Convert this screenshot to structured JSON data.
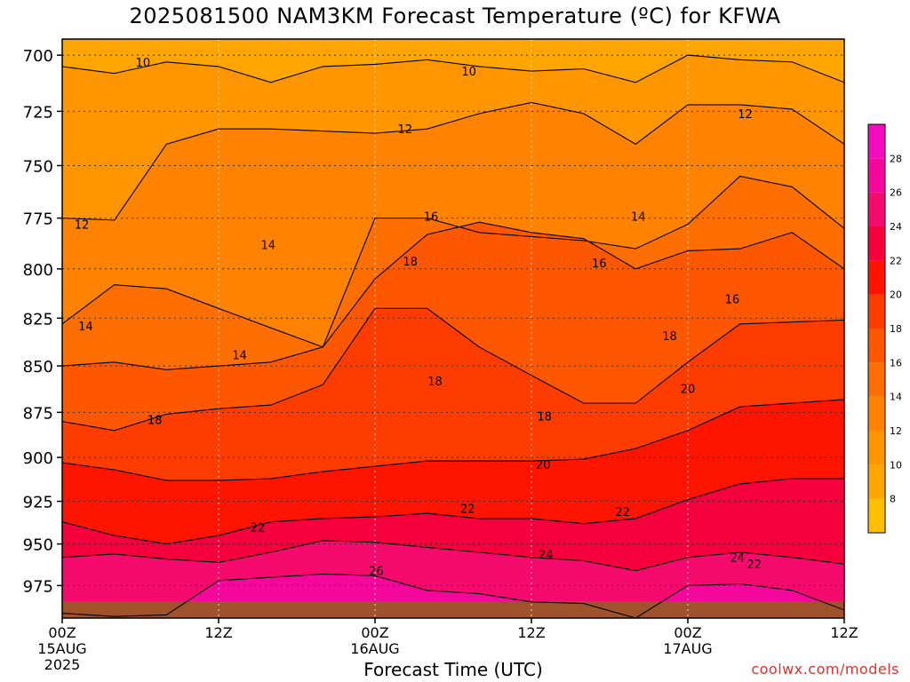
{
  "header": {
    "title": "2025081500 NAM3KM Forecast Temperature (ºC) for KFWA"
  },
  "footer": {
    "xlabel": "Forecast Time (UTC)",
    "credit": "coolwx.com/models"
  },
  "chart_data": {
    "type": "heatmap",
    "title": "2025081500 NAM3KM Forecast Temperature (ºC) for KFWA",
    "xlabel": "Forecast Time (UTC)",
    "ylabel": "",
    "y_scale": "pressure (inverted)",
    "x_range_hours": [
      0,
      60
    ],
    "y_range_hpa": [
      693,
      995
    ],
    "x_ticks": [
      {
        "hour": 0,
        "label": "00Z",
        "sub": [
          "15AUG",
          "2025"
        ]
      },
      {
        "hour": 12,
        "label": "12Z",
        "sub": []
      },
      {
        "hour": 24,
        "label": "00Z",
        "sub": [
          "16AUG"
        ]
      },
      {
        "hour": 36,
        "label": "12Z",
        "sub": []
      },
      {
        "hour": 48,
        "label": "00Z",
        "sub": [
          "17AUG"
        ]
      },
      {
        "hour": 60,
        "label": "12Z",
        "sub": []
      }
    ],
    "y_ticks": [
      700,
      725,
      750,
      775,
      800,
      825,
      850,
      875,
      900,
      925,
      950,
      975
    ],
    "grid": true,
    "colorbar": {
      "placement": "right",
      "levels": [
        6,
        8,
        10,
        12,
        14,
        16,
        18,
        20,
        22,
        24,
        26,
        28,
        30
      ],
      "labels": [
        8,
        10,
        12,
        14,
        16,
        18,
        20,
        22,
        24,
        26,
        28
      ],
      "colors": [
        "#ffbe00",
        "#ffa500",
        "#ff9600",
        "#ff8300",
        "#ff6e00",
        "#ff5600",
        "#ff3c00",
        "#ff1400",
        "#f5003c",
        "#f50a6e",
        "#f5079b",
        "#f50cc0"
      ]
    },
    "ground_color": "#a0522d",
    "contour_lines": [
      {
        "level": 10,
        "label": "10",
        "p": [
          705,
          708,
          703,
          705,
          712,
          705,
          704,
          702,
          705,
          707,
          706,
          712,
          700,
          702,
          703,
          712
        ]
      },
      {
        "level": 12,
        "label": "12",
        "p": [
          775,
          776,
          740,
          733,
          733,
          734,
          735,
          733,
          726,
          721,
          726,
          740,
          722,
          722,
          724,
          740
        ]
      },
      {
        "level": 14,
        "label": "14",
        "p": [
          828,
          808,
          810,
          820,
          830,
          840,
          775,
          775,
          782,
          784,
          786,
          790,
          778,
          755,
          760,
          780
        ]
      },
      {
        "level": 16,
        "label": "16",
        "p": [
          850,
          848,
          852,
          850,
          848,
          840,
          805,
          783,
          777,
          782,
          785,
          800,
          791,
          790,
          782,
          800
        ]
      },
      {
        "level": 18,
        "label": "18",
        "p": [
          880,
          885,
          876,
          873,
          871,
          860,
          820,
          820,
          840,
          855,
          870,
          870,
          848,
          828,
          827,
          826
        ]
      },
      {
        "level": 20,
        "label": "20",
        "p": [
          903,
          907,
          913,
          913,
          912,
          908,
          905,
          902,
          902,
          902,
          901,
          895,
          885,
          872,
          870,
          868
        ]
      },
      {
        "level": 22,
        "label": "22",
        "p": [
          937,
          945,
          950,
          945,
          937,
          935,
          934,
          932,
          935,
          935,
          938,
          935,
          924,
          915,
          912,
          912
        ]
      },
      {
        "level": 24,
        "label": "24",
        "p": [
          958,
          956,
          959,
          961,
          955,
          948,
          949,
          952,
          955,
          958,
          960,
          966,
          958,
          955,
          958,
          962
        ]
      },
      {
        "level": 26,
        "label": "26",
        "p": [
          992,
          994,
          993,
          972,
          970,
          968,
          969,
          978,
          980,
          985,
          986,
          996,
          975,
          974,
          978,
          990
        ]
      }
    ],
    "contour_label_positions": [
      {
        "label": "10",
        "hour": 6.2,
        "p": 703
      },
      {
        "label": "10",
        "hour": 31.2,
        "p": 707
      },
      {
        "label": "12",
        "hour": 1.5,
        "p": 778
      },
      {
        "label": "12",
        "hour": 26.3,
        "p": 733
      },
      {
        "label": "12",
        "hour": 52.4,
        "p": 726
      },
      {
        "level_note": "",
        "label": "14",
        "hour": 1.8,
        "p": 829
      },
      {
        "label": "14",
        "hour": 15.8,
        "p": 788
      },
      {
        "label": "14",
        "hour": 13.6,
        "p": 844
      },
      {
        "label": "14",
        "hour": 44.2,
        "p": 774
      },
      {
        "label": "16",
        "hour": 28.3,
        "p": 774
      },
      {
        "label": "16",
        "hour": 41.2,
        "p": 797
      },
      {
        "label": "16",
        "hour": 51.4,
        "p": 815
      },
      {
        "label": "18",
        "hour": 26.7,
        "p": 796
      },
      {
        "label": "18",
        "hour": 28.6,
        "p": 858
      },
      {
        "label": "18",
        "hour": 7.1,
        "p": 879
      },
      {
        "label": "18",
        "hour": 37.0,
        "p": 877
      },
      {
        "label": "18",
        "hour": 46.6,
        "p": 834
      },
      {
        "label": "20",
        "hour": 36.9,
        "p": 904
      },
      {
        "label": "20",
        "hour": 48.0,
        "p": 862
      },
      {
        "label": "22",
        "hour": 15.0,
        "p": 940
      },
      {
        "label": "22",
        "hour": 31.1,
        "p": 929
      },
      {
        "label": "22",
        "hour": 43.0,
        "p": 931
      },
      {
        "label": "22",
        "hour": 53.1,
        "p": 962
      },
      {
        "label": "24",
        "hour": 37.1,
        "p": 956
      },
      {
        "label": "24",
        "hour": 51.8,
        "p": 958
      },
      {
        "label": "26",
        "hour": 24.1,
        "p": 966
      }
    ]
  }
}
